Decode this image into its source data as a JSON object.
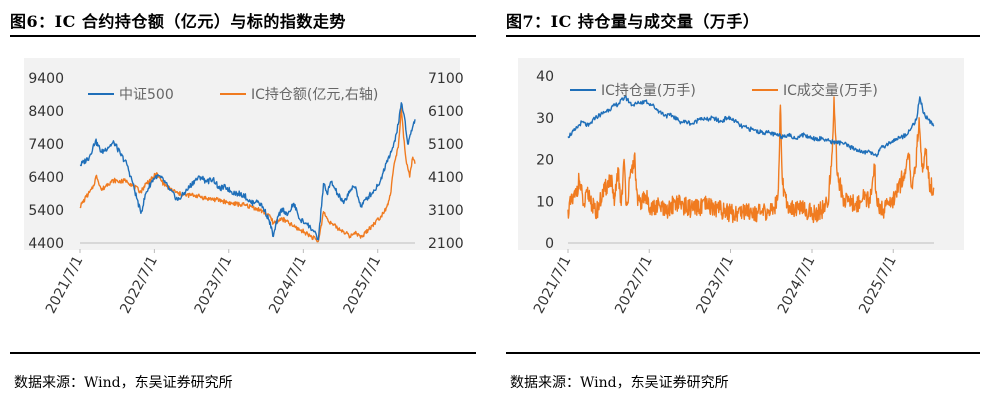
{
  "figures": [
    {
      "title": "图6：IC 合约持仓额（亿元）与标的指数走势",
      "source": "数据来源：Wind，东吴证券研究所"
    },
    {
      "title": "图7：IC 持仓量与成交量（万手）",
      "source": "数据来源：Wind，东吴证券研究所"
    }
  ],
  "chart_data": [
    {
      "type": "line",
      "x_tick_labels": [
        "2021/7/1",
        "2022/7/1",
        "2023/7/1",
        "2024/7/1",
        "2025/7/1"
      ],
      "x_range": [
        "2021-07-01",
        "2025-12-31"
      ],
      "left_axis": {
        "ylim": [
          4400,
          9400
        ],
        "tick_labels": [
          "4400",
          "5400",
          "6400",
          "7400",
          "8400",
          "9400"
        ]
      },
      "right_axis": {
        "ylim": [
          2100,
          7100
        ],
        "tick_labels": [
          "2100",
          "3100",
          "4100",
          "5100",
          "6100",
          "7100"
        ]
      },
      "legend_placement": "top",
      "series": [
        {
          "name": "中证500",
          "axis": "left",
          "color": "#1f6fb9",
          "points": [
            [
              "2021-07-01",
              6750
            ],
            [
              "2021-08-15",
              7000
            ],
            [
              "2021-09-15",
              7500
            ],
            [
              "2021-10-15",
              7150
            ],
            [
              "2021-11-15",
              7300
            ],
            [
              "2021-12-15",
              7450
            ],
            [
              "2022-01-15",
              7100
            ],
            [
              "2022-02-15",
              6800
            ],
            [
              "2022-03-15",
              6250
            ],
            [
              "2022-04-26",
              5300
            ],
            [
              "2022-05-20",
              5900
            ],
            [
              "2022-06-20",
              6300
            ],
            [
              "2022-07-15",
              6450
            ],
            [
              "2022-08-15",
              6300
            ],
            [
              "2022-09-15",
              6000
            ],
            [
              "2022-10-25",
              5700
            ],
            [
              "2022-12-01",
              5950
            ],
            [
              "2023-01-15",
              6300
            ],
            [
              "2023-02-15",
              6400
            ],
            [
              "2023-03-15",
              6250
            ],
            [
              "2023-04-15",
              6350
            ],
            [
              "2023-05-15",
              6050
            ],
            [
              "2023-06-15",
              6100
            ],
            [
              "2023-07-15",
              5950
            ],
            [
              "2023-08-15",
              5900
            ],
            [
              "2023-09-15",
              5850
            ],
            [
              "2023-10-20",
              5600
            ],
            [
              "2023-11-15",
              5700
            ],
            [
              "2023-12-15",
              5500
            ],
            [
              "2024-01-15",
              5100
            ],
            [
              "2024-02-05",
              4600
            ],
            [
              "2024-02-28",
              5200
            ],
            [
              "2024-03-20",
              5450
            ],
            [
              "2024-04-15",
              5250
            ],
            [
              "2024-05-15",
              5600
            ],
            [
              "2024-06-15",
              5100
            ],
            [
              "2024-07-15",
              5000
            ],
            [
              "2024-08-15",
              4800
            ],
            [
              "2024-09-13",
              4500
            ],
            [
              "2024-10-08",
              6200
            ],
            [
              "2024-10-25",
              5900
            ],
            [
              "2024-11-15",
              6250
            ],
            [
              "2024-12-15",
              5900
            ],
            [
              "2025-01-15",
              5600
            ],
            [
              "2025-02-15",
              6000
            ],
            [
              "2025-03-15",
              6100
            ],
            [
              "2025-04-08",
              5500
            ],
            [
              "2025-05-15",
              5800
            ],
            [
              "2025-06-15",
              6000
            ],
            [
              "2025-07-15",
              6300
            ],
            [
              "2025-08-15",
              6900
            ],
            [
              "2025-09-15",
              7300
            ],
            [
              "2025-10-10",
              8000
            ],
            [
              "2025-10-25",
              8650
            ],
            [
              "2025-11-10",
              8200
            ],
            [
              "2025-11-25",
              7400
            ],
            [
              "2025-12-10",
              7700
            ],
            [
              "2025-12-31",
              8150
            ]
          ]
        },
        {
          "name": "IC持仓额(亿元,右轴)",
          "axis": "right",
          "color": "#f07b20",
          "points": [
            [
              "2021-07-01",
              3200
            ],
            [
              "2021-08-01",
              3500
            ],
            [
              "2021-09-01",
              3750
            ],
            [
              "2021-09-20",
              4150
            ],
            [
              "2021-10-15",
              3700
            ],
            [
              "2021-11-15",
              3900
            ],
            [
              "2021-12-15",
              4000
            ],
            [
              "2022-01-15",
              3950
            ],
            [
              "2022-02-15",
              4000
            ],
            [
              "2022-03-15",
              3850
            ],
            [
              "2022-04-26",
              3650
            ],
            [
              "2022-05-20",
              3900
            ],
            [
              "2022-06-20",
              4050
            ],
            [
              "2022-07-10",
              4200
            ],
            [
              "2022-08-15",
              3900
            ],
            [
              "2022-09-15",
              3750
            ],
            [
              "2022-10-25",
              3600
            ],
            [
              "2022-12-01",
              3550
            ],
            [
              "2023-01-15",
              3550
            ],
            [
              "2023-03-15",
              3450
            ],
            [
              "2023-05-15",
              3400
            ],
            [
              "2023-07-15",
              3300
            ],
            [
              "2023-09-15",
              3250
            ],
            [
              "2023-11-15",
              3150
            ],
            [
              "2024-01-15",
              2950
            ],
            [
              "2024-02-05",
              2700
            ],
            [
              "2024-03-15",
              2850
            ],
            [
              "2024-05-15",
              2600
            ],
            [
              "2024-07-15",
              2400
            ],
            [
              "2024-09-13",
              2150
            ],
            [
              "2024-10-08",
              3050
            ],
            [
              "2024-10-25",
              2850
            ],
            [
              "2024-11-15",
              2700
            ],
            [
              "2024-12-15",
              2550
            ],
            [
              "2025-01-15",
              2450
            ],
            [
              "2025-02-15",
              2300
            ],
            [
              "2025-03-15",
              2450
            ],
            [
              "2025-04-08",
              2250
            ],
            [
              "2025-05-15",
              2500
            ],
            [
              "2025-06-15",
              2700
            ],
            [
              "2025-07-15",
              2900
            ],
            [
              "2025-08-15",
              3200
            ],
            [
              "2025-09-01",
              3550
            ],
            [
              "2025-09-20",
              4500
            ],
            [
              "2025-10-10",
              5000
            ],
            [
              "2025-10-25",
              6200
            ],
            [
              "2025-11-05",
              5300
            ],
            [
              "2025-11-20",
              4500
            ],
            [
              "2025-12-05",
              4100
            ],
            [
              "2025-12-20",
              4700
            ],
            [
              "2025-12-31",
              4500
            ]
          ]
        }
      ]
    },
    {
      "type": "line",
      "x_tick_labels": [
        "2021/7/1",
        "2022/7/1",
        "2023/7/1",
        "2024/7/1",
        "2025/7/1"
      ],
      "x_range": [
        "2021-07-01",
        "2025-12-31"
      ],
      "ylim": [
        0,
        40
      ],
      "y_tick_labels": [
        "0",
        "10",
        "20",
        "30",
        "40"
      ],
      "legend_placement": "top",
      "series": [
        {
          "name": "IC持仓量(万手)",
          "color": "#1f6fb9",
          "points": [
            [
              "2021-07-01",
              25.5
            ],
            [
              "2021-08-01",
              27
            ],
            [
              "2021-09-01",
              29
            ],
            [
              "2021-10-01",
              28
            ],
            [
              "2021-11-01",
              30
            ],
            [
              "2021-12-01",
              31
            ],
            [
              "2022-01-01",
              32
            ],
            [
              "2022-02-15",
              33.5
            ],
            [
              "2022-03-15",
              35
            ],
            [
              "2022-04-15",
              33
            ],
            [
              "2022-05-15",
              33.5
            ],
            [
              "2022-06-15",
              34
            ],
            [
              "2022-07-15",
              33
            ],
            [
              "2022-08-15",
              31.5
            ],
            [
              "2022-09-15",
              30.5
            ],
            [
              "2022-10-15",
              30.5
            ],
            [
              "2022-11-15",
              29
            ],
            [
              "2022-12-15",
              29
            ],
            [
              "2023-01-15",
              28.5
            ],
            [
              "2023-02-15",
              30
            ],
            [
              "2023-03-15",
              29.5
            ],
            [
              "2023-04-15",
              30
            ],
            [
              "2023-05-15",
              29
            ],
            [
              "2023-06-15",
              30
            ],
            [
              "2023-07-15",
              29.5
            ],
            [
              "2023-08-15",
              28
            ],
            [
              "2023-09-15",
              27.5
            ],
            [
              "2023-10-15",
              27
            ],
            [
              "2023-11-15",
              26.5
            ],
            [
              "2023-12-15",
              26.5
            ],
            [
              "2024-01-15",
              26
            ],
            [
              "2024-02-15",
              25.5
            ],
            [
              "2024-03-15",
              26
            ],
            [
              "2024-04-15",
              25
            ],
            [
              "2024-05-15",
              26
            ],
            [
              "2024-06-15",
              25.5
            ],
            [
              "2024-07-15",
              25
            ],
            [
              "2024-08-15",
              25
            ],
            [
              "2024-09-15",
              24.5
            ],
            [
              "2024-10-15",
              24
            ],
            [
              "2024-11-15",
              24
            ],
            [
              "2024-12-15",
              23
            ],
            [
              "2025-01-15",
              22.5
            ],
            [
              "2025-02-15",
              21.5
            ],
            [
              "2025-03-15",
              22
            ],
            [
              "2025-04-15",
              21
            ],
            [
              "2025-05-15",
              23
            ],
            [
              "2025-06-15",
              24
            ],
            [
              "2025-07-15",
              25
            ],
            [
              "2025-08-15",
              25.5
            ],
            [
              "2025-09-15",
              27
            ],
            [
              "2025-10-15",
              30
            ],
            [
              "2025-10-28",
              35
            ],
            [
              "2025-11-15",
              31
            ],
            [
              "2025-12-05",
              29.5
            ],
            [
              "2025-12-31",
              28
            ]
          ]
        },
        {
          "name": "IC成交量(万手)",
          "color": "#f07b20",
          "points": [
            [
              "2021-07-01",
              8
            ],
            [
              "2021-08-01",
              11
            ],
            [
              "2021-08-20",
              15
            ],
            [
              "2021-09-10",
              9
            ],
            [
              "2021-10-01",
              12
            ],
            [
              "2021-11-01",
              7
            ],
            [
              "2021-12-01",
              11
            ],
            [
              "2022-01-10",
              16
            ],
            [
              "2022-01-25",
              9
            ],
            [
              "2022-02-10",
              18
            ],
            [
              "2022-02-25",
              9
            ],
            [
              "2022-03-10",
              20
            ],
            [
              "2022-03-20",
              9
            ],
            [
              "2022-04-25",
              21
            ],
            [
              "2022-05-10",
              9
            ],
            [
              "2022-06-15",
              11
            ],
            [
              "2022-07-15",
              8
            ],
            [
              "2022-08-15",
              9
            ],
            [
              "2022-09-15",
              7
            ],
            [
              "2022-10-25",
              10
            ],
            [
              "2022-12-01",
              9
            ],
            [
              "2023-01-15",
              8
            ],
            [
              "2023-03-15",
              9
            ],
            [
              "2023-05-15",
              8
            ],
            [
              "2023-07-15",
              7
            ],
            [
              "2023-09-15",
              8
            ],
            [
              "2023-11-15",
              7
            ],
            [
              "2024-01-15",
              8
            ],
            [
              "2024-02-01",
              13
            ],
            [
              "2024-02-10",
              33
            ],
            [
              "2024-02-20",
              14
            ],
            [
              "2024-03-15",
              9
            ],
            [
              "2024-05-15",
              8
            ],
            [
              "2024-07-15",
              7
            ],
            [
              "2024-09-10",
              9
            ],
            [
              "2024-09-30",
              22
            ],
            [
              "2024-10-08",
              35
            ],
            [
              "2024-10-20",
              18
            ],
            [
              "2024-11-15",
              11
            ],
            [
              "2024-12-15",
              10
            ],
            [
              "2025-01-15",
              9
            ],
            [
              "2025-02-15",
              11
            ],
            [
              "2025-03-15",
              10
            ],
            [
              "2025-04-08",
              18
            ],
            [
              "2025-04-20",
              9
            ],
            [
              "2025-05-15",
              8
            ],
            [
              "2025-06-15",
              9
            ],
            [
              "2025-07-15",
              12
            ],
            [
              "2025-08-15",
              16
            ],
            [
              "2025-09-10",
              20
            ],
            [
              "2025-09-25",
              13
            ],
            [
              "2025-10-10",
              18
            ],
            [
              "2025-10-25",
              30
            ],
            [
              "2025-11-10",
              17
            ],
            [
              "2025-11-25",
              22
            ],
            [
              "2025-12-10",
              14
            ],
            [
              "2025-12-31",
              13
            ]
          ]
        }
      ]
    }
  ]
}
